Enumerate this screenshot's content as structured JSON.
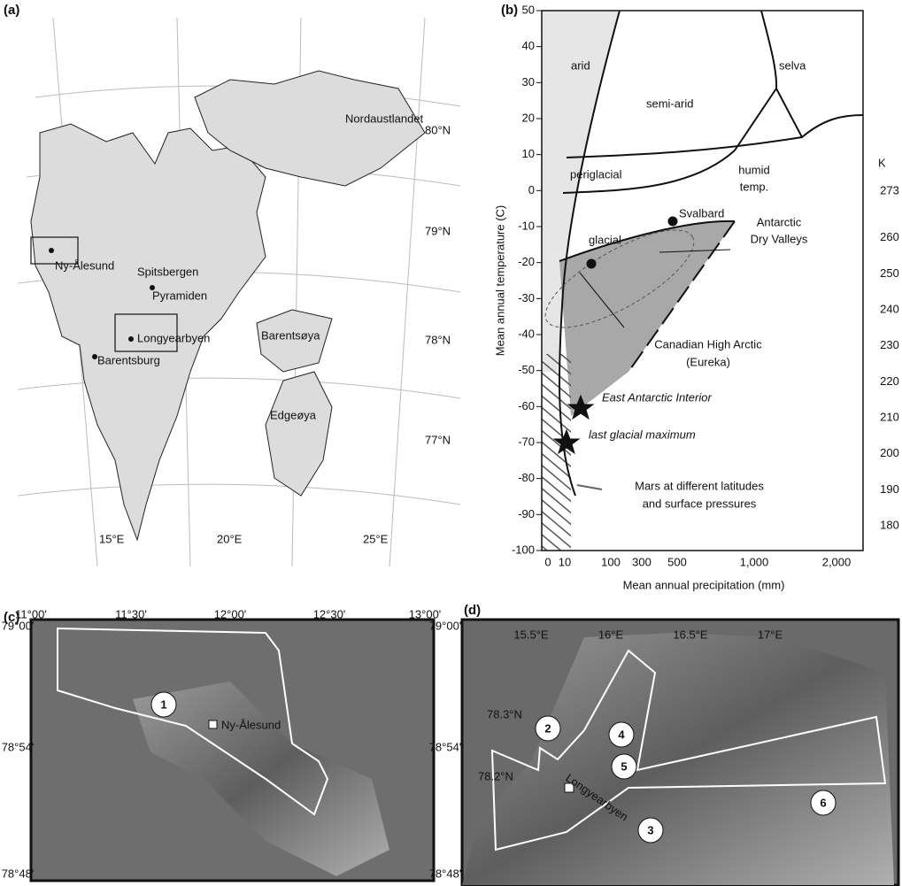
{
  "panel_a": {
    "label": "(a)",
    "places": [
      "Nordaustlandet",
      "Ny-Ålesund",
      "Spitsbergen",
      "Pyramiden",
      "Longyearbyen",
      "Barentsburg",
      "Barentsøya",
      "Edgeøya"
    ],
    "latitudes": [
      "80°N",
      "79°N",
      "78°N",
      "77°N"
    ],
    "longitudes": [
      "15°E",
      "20°E",
      "25°E"
    ]
  },
  "panel_b": {
    "label": "(b)",
    "y_label": "Mean annual temperature (C)",
    "x_label": "Mean annual precipitation (mm)",
    "yticks": [
      50,
      40,
      30,
      20,
      10,
      0,
      -10,
      -20,
      -30,
      -40,
      -50,
      -60,
      -70,
      -80,
      -90,
      -100
    ],
    "xticks": [
      0,
      10,
      100,
      300,
      500,
      "1,000",
      "2,000"
    ],
    "k_label": "K",
    "kticks": [
      273,
      260,
      250,
      240,
      230,
      220,
      210,
      200,
      190,
      180
    ],
    "regions": [
      "arid",
      "semi-arid",
      "selva",
      "humid",
      "temp.",
      "periglacial",
      "glacial"
    ],
    "annotations": [
      "Svalbard",
      "Antarctic",
      "Dry Valleys",
      "Canadian High Arctic",
      "(Eureka)",
      "East Antarctic Interior",
      "last glacial maximum",
      "Mars at different latitudes",
      "and surface pressures"
    ]
  },
  "panel_c": {
    "label": "(c)",
    "top_ticks": [
      "11°00'",
      "11°30'",
      "12°00'",
      "12°30'",
      "13°00'"
    ],
    "side_ticks": [
      "79°00'",
      "78°54'",
      "78°48'"
    ],
    "site": "1",
    "town": "Ny-Ålesund"
  },
  "panel_d": {
    "label": "(d)",
    "top_ticks": [
      "15.5°E",
      "16°E",
      "16.5°E",
      "17°E"
    ],
    "side_ticks": [
      "78.3°N",
      "78.2°N"
    ],
    "town": "Longyearbyen",
    "sites": [
      "2",
      "4",
      "5",
      "3",
      "6"
    ]
  }
}
